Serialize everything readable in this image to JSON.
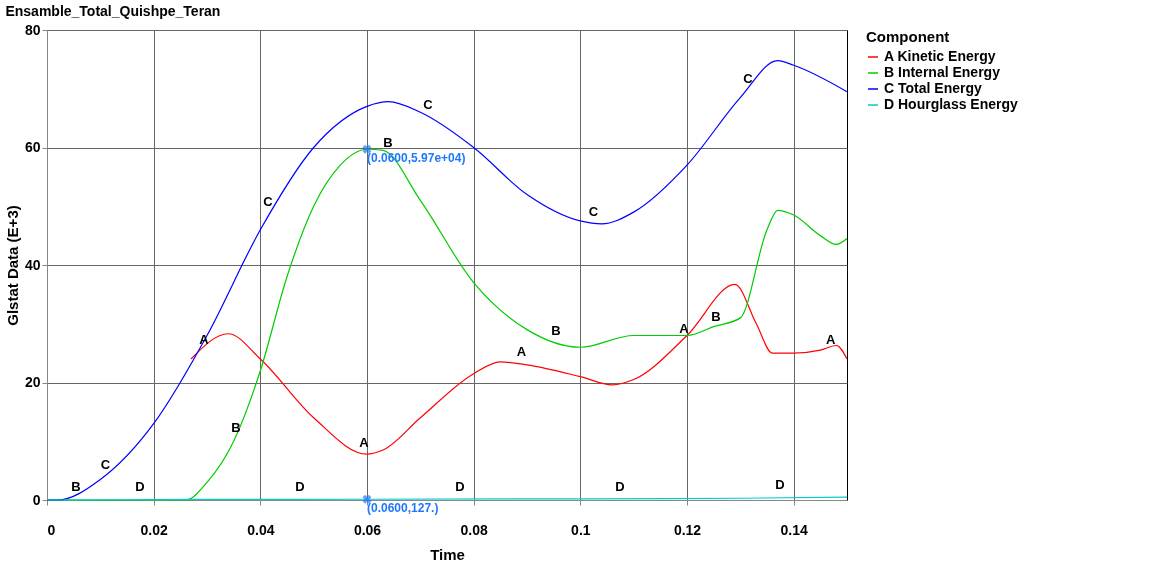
{
  "chart_data": {
    "type": "line",
    "title": "Ensamble_Total_Quishpe_Teran",
    "xlabel": "Time",
    "ylabel": "Glstat Data (E+3)",
    "legend_title": "Component",
    "legend": "top right",
    "grid": true,
    "xlim": [
      0,
      0.15
    ],
    "xticks": [
      0,
      0.02,
      0.04,
      0.06,
      0.08,
      0.1,
      0.12,
      0.14
    ],
    "ylim": [
      0,
      80
    ],
    "yticks": [
      0,
      20,
      40,
      60,
      80
    ],
    "series": [
      {
        "name": "A Kinetic Energy",
        "color": "#ff0000",
        "x": [
          0.027,
          0.034,
          0.04,
          0.05,
          0.06,
          0.063,
          0.07,
          0.08,
          0.085,
          0.09,
          0.1,
          0.106,
          0.11,
          0.12,
          0.129,
          0.133,
          0.136,
          0.14,
          0.145,
          0.148,
          0.15
        ],
        "values": [
          24,
          28.3,
          24,
          14,
          7.8,
          8.5,
          14,
          21.5,
          23.5,
          23,
          21,
          19.6,
          20.5,
          28,
          36.7,
          30,
          25,
          25,
          25.5,
          26.3,
          24
        ]
      },
      {
        "name": "B Internal Energy",
        "color": "#00cc00",
        "x": [
          0,
          0.026,
          0.03,
          0.035,
          0.04,
          0.045,
          0.05,
          0.055,
          0.06,
          0.063,
          0.07,
          0.08,
          0.09,
          0.1,
          0.11,
          0.12,
          0.125,
          0.13,
          0.135,
          0.137,
          0.14,
          0.145,
          0.148,
          0.15
        ],
        "values": [
          0,
          0,
          3,
          10,
          22,
          38,
          50,
          57,
          59.7,
          59.5,
          51,
          37,
          29,
          26,
          28,
          28,
          29.5,
          31,
          46,
          49.3,
          48.5,
          45,
          43.5,
          44.5
        ]
      },
      {
        "name": "C Total Energy",
        "color": "#0000ff",
        "x": [
          0,
          0.002,
          0.01,
          0.02,
          0.03,
          0.04,
          0.05,
          0.06,
          0.064,
          0.07,
          0.08,
          0.09,
          0.1,
          0.104,
          0.11,
          0.12,
          0.13,
          0.137,
          0.14,
          0.15
        ],
        "values": [
          0,
          0,
          3.5,
          13,
          28,
          46,
          60,
          67,
          67.8,
          66,
          60,
          52,
          47.5,
          47,
          49,
          57,
          68.5,
          74.8,
          74,
          69.5
        ]
      },
      {
        "name": "D Hourglass Energy",
        "color": "#00cccc",
        "x": [
          0,
          0.03,
          0.06,
          0.1,
          0.13,
          0.15
        ],
        "values": [
          0,
          0.1,
          0.127,
          0.2,
          0.3,
          0.5
        ]
      }
    ],
    "annotations": [
      {
        "text": "A",
        "x": 0.0295,
        "y": 26
      },
      {
        "text": "A",
        "x": 0.0595,
        "y": 8.5
      },
      {
        "text": "A",
        "x": 0.089,
        "y": 24
      },
      {
        "text": "A",
        "x": 0.1195,
        "y": 28
      },
      {
        "text": "A",
        "x": 0.147,
        "y": 26
      },
      {
        "text": "B",
        "x": 0.0055,
        "y": 1
      },
      {
        "text": "B",
        "x": 0.0355,
        "y": 11
      },
      {
        "text": "B",
        "x": 0.064,
        "y": 59.5
      },
      {
        "text": "B",
        "x": 0.0955,
        "y": 27.5
      },
      {
        "text": "B",
        "x": 0.1255,
        "y": 30
      },
      {
        "text": "C",
        "x": 0.011,
        "y": 4.8
      },
      {
        "text": "C",
        "x": 0.0415,
        "y": 49.5
      },
      {
        "text": "C",
        "x": 0.0715,
        "y": 66
      },
      {
        "text": "C",
        "x": 0.1025,
        "y": 47.8
      },
      {
        "text": "C",
        "x": 0.1315,
        "y": 70.5
      },
      {
        "text": "D",
        "x": 0.0175,
        "y": 1
      },
      {
        "text": "D",
        "x": 0.0475,
        "y": 1
      },
      {
        "text": "D",
        "x": 0.0775,
        "y": 1
      },
      {
        "text": "D",
        "x": 0.1075,
        "y": 1
      },
      {
        "text": "D",
        "x": 0.1375,
        "y": 1.3
      },
      {
        "text": "(0.0600,5.97e+04)",
        "x": 0.06,
        "y": 59.7
      },
      {
        "text": "(0.0600,127.)",
        "x": 0.06,
        "y": 0.127
      }
    ]
  }
}
